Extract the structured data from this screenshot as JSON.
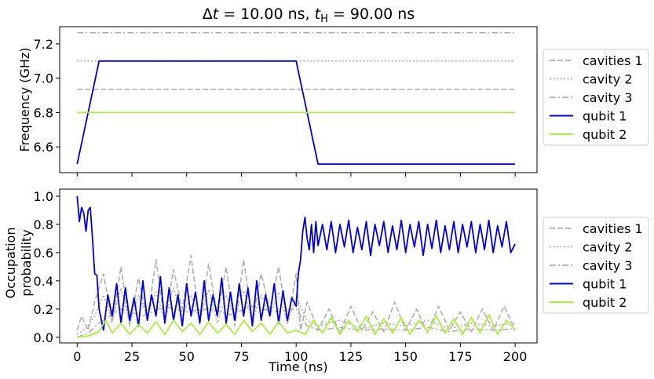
{
  "chart_data": [
    {
      "type": "line",
      "title": "Δt = 10.00 ns, t_H = 90.00 ns",
      "title_parts": {
        "delta": "Δ",
        "t": "t",
        "eq1": " = 10.00 ns, ",
        "tH": "t",
        "sub": "H",
        "eq2": " = 90.00 ns"
      },
      "xlabel": "",
      "ylabel": "Frequency (GHz)",
      "xlim": [
        -8,
        210
      ],
      "ylim": [
        6.45,
        7.3
      ],
      "yticks": [
        6.6,
        6.8,
        7.0,
        7.2
      ],
      "ytick_labels": [
        "6.6",
        "6.8",
        "7.0",
        "7.2"
      ],
      "xticks": [
        0,
        25,
        50,
        75,
        100,
        125,
        150,
        175,
        200
      ],
      "show_x_tick_labels": false,
      "grid": false,
      "legend_position": "right",
      "series": [
        {
          "name": "cavities 1",
          "style": "dashed",
          "color": "#b0b0b0",
          "x": [
            0,
            200
          ],
          "y": [
            6.935,
            6.935
          ]
        },
        {
          "name": "cavity 2",
          "style": "dotted",
          "color": "#b0b0b0",
          "x": [
            0,
            200
          ],
          "y": [
            7.1,
            7.1
          ]
        },
        {
          "name": "cavity 3",
          "style": "dashdot",
          "color": "#b0b0b0",
          "x": [
            0,
            200
          ],
          "y": [
            7.265,
            7.265
          ]
        },
        {
          "name": "qubit 1",
          "style": "solid",
          "color": "#0000dd",
          "x": [
            0,
            10,
            100,
            110,
            200
          ],
          "y": [
            6.5,
            7.1,
            7.1,
            6.5,
            6.5
          ]
        },
        {
          "name": "qubit 2",
          "style": "solid",
          "color": "#aaee44",
          "x": [
            0,
            200
          ],
          "y": [
            6.8,
            6.8
          ]
        }
      ]
    },
    {
      "type": "line",
      "title": "",
      "xlabel": "Time (ns)",
      "ylabel_lines": [
        "Occupation",
        "probability"
      ],
      "xlim": [
        -8,
        210
      ],
      "ylim": [
        -0.04,
        1.05
      ],
      "yticks": [
        0.0,
        0.2,
        0.4,
        0.6,
        0.8,
        1.0
      ],
      "ytick_labels": [
        "0.0",
        "0.2",
        "0.4",
        "0.6",
        "0.8",
        "1.0"
      ],
      "xticks": [
        0,
        25,
        50,
        75,
        100,
        125,
        150,
        175,
        200
      ],
      "xtick_labels": [
        "0",
        "25",
        "50",
        "75",
        "100",
        "125",
        "150",
        "175",
        "200"
      ],
      "grid": false,
      "legend_position": "right",
      "series": [
        {
          "name": "cavities 1",
          "style": "dashed",
          "color": "#b0b0b0",
          "x": [
            0,
            2,
            5,
            8,
            12,
            16,
            20,
            24,
            28,
            32,
            36,
            40,
            44,
            48,
            52,
            56,
            60,
            64,
            68,
            72,
            76,
            80,
            84,
            88,
            92,
            96,
            100,
            102,
            105,
            110,
            115,
            120,
            125,
            130,
            135,
            140,
            145,
            150,
            155,
            160,
            165,
            170,
            175,
            180,
            185,
            190,
            195,
            200
          ],
          "y": [
            0.05,
            0.15,
            0.05,
            0.25,
            0.45,
            0.1,
            0.5,
            0.08,
            0.42,
            0.12,
            0.55,
            0.1,
            0.48,
            0.2,
            0.58,
            0.1,
            0.52,
            0.15,
            0.5,
            0.08,
            0.55,
            0.12,
            0.45,
            0.2,
            0.5,
            0.1,
            0.45,
            0.05,
            0.25,
            0.05,
            0.2,
            0.03,
            0.22,
            0.05,
            0.18,
            0.04,
            0.25,
            0.05,
            0.2,
            0.03,
            0.22,
            0.05,
            0.18,
            0.04,
            0.2,
            0.05,
            0.22,
            0.05
          ]
        },
        {
          "name": "cavity 2",
          "style": "dotted",
          "color": "#b0b0b0",
          "x": [
            0,
            4,
            8,
            12,
            16,
            20,
            24,
            28,
            32,
            36,
            40,
            44,
            48,
            52,
            56,
            60,
            64,
            68,
            72,
            76,
            80,
            84,
            88,
            92,
            96,
            100,
            105,
            110,
            120,
            130,
            140,
            150,
            160,
            170,
            180,
            190,
            200
          ],
          "y": [
            0.02,
            0.06,
            0.15,
            0.3,
            0.12,
            0.35,
            0.1,
            0.3,
            0.15,
            0.32,
            0.12,
            0.35,
            0.15,
            0.3,
            0.12,
            0.34,
            0.1,
            0.3,
            0.14,
            0.33,
            0.12,
            0.3,
            0.15,
            0.32,
            0.1,
            0.28,
            0.12,
            0.08,
            0.12,
            0.06,
            0.1,
            0.08,
            0.12,
            0.06,
            0.1,
            0.08,
            0.1
          ]
        },
        {
          "name": "cavity 3",
          "style": "dashdot",
          "color": "#b0b0b0",
          "x": [
            0,
            5,
            10,
            20,
            30,
            40,
            50,
            60,
            70,
            80,
            90,
            100,
            105,
            110,
            120,
            130,
            140,
            150,
            160,
            170,
            180,
            190,
            200
          ],
          "y": [
            0.0,
            0.03,
            0.1,
            0.2,
            0.15,
            0.22,
            0.18,
            0.2,
            0.16,
            0.22,
            0.18,
            0.2,
            0.08,
            0.05,
            0.07,
            0.05,
            0.06,
            0.05,
            0.07,
            0.04,
            0.06,
            0.05,
            0.06
          ]
        },
        {
          "name": "qubit 1",
          "style": "solid",
          "color": "#0000dd",
          "x": [
            0,
            1,
            2,
            3,
            4,
            5,
            6,
            7,
            8,
            9,
            10,
            12,
            14,
            16,
            18,
            20,
            22,
            24,
            26,
            28,
            30,
            32,
            34,
            36,
            38,
            40,
            42,
            44,
            46,
            48,
            50,
            52,
            54,
            56,
            58,
            60,
            62,
            64,
            66,
            68,
            70,
            72,
            74,
            76,
            78,
            80,
            82,
            84,
            86,
            88,
            90,
            92,
            94,
            96,
            98,
            100,
            101,
            102,
            103,
            104,
            105,
            106,
            107,
            108,
            109,
            110,
            112,
            114,
            116,
            118,
            120,
            122,
            124,
            126,
            128,
            130,
            132,
            134,
            136,
            138,
            140,
            142,
            144,
            146,
            148,
            150,
            152,
            154,
            156,
            158,
            160,
            162,
            164,
            166,
            168,
            170,
            172,
            174,
            176,
            178,
            180,
            182,
            184,
            186,
            188,
            190,
            192,
            194,
            196,
            198,
            200
          ],
          "y": [
            1.0,
            0.82,
            0.92,
            0.88,
            0.75,
            0.9,
            0.92,
            0.7,
            0.45,
            0.44,
            0.2,
            0.05,
            0.3,
            0.15,
            0.38,
            0.1,
            0.35,
            0.12,
            0.28,
            0.08,
            0.4,
            0.12,
            0.3,
            0.15,
            0.43,
            0.1,
            0.35,
            0.12,
            0.3,
            0.08,
            0.38,
            0.15,
            0.32,
            0.1,
            0.4,
            0.12,
            0.3,
            0.15,
            0.42,
            0.1,
            0.32,
            0.12,
            0.38,
            0.15,
            0.35,
            0.08,
            0.4,
            0.12,
            0.3,
            0.15,
            0.38,
            0.1,
            0.33,
            0.12,
            0.28,
            0.22,
            0.45,
            0.55,
            0.75,
            0.85,
            0.7,
            0.62,
            0.8,
            0.6,
            0.82,
            0.65,
            0.8,
            0.62,
            0.82,
            0.6,
            0.8,
            0.64,
            0.83,
            0.6,
            0.78,
            0.62,
            0.82,
            0.58,
            0.8,
            0.65,
            0.82,
            0.6,
            0.79,
            0.62,
            0.83,
            0.6,
            0.8,
            0.64,
            0.82,
            0.58,
            0.8,
            0.63,
            0.83,
            0.6,
            0.79,
            0.62,
            0.82,
            0.6,
            0.8,
            0.64,
            0.82,
            0.6,
            0.8,
            0.62,
            0.83,
            0.6,
            0.79,
            0.64,
            0.82,
            0.6,
            0.66
          ]
        },
        {
          "name": "qubit 2",
          "style": "solid",
          "color": "#aaee44",
          "x": [
            0,
            5,
            10,
            13,
            16,
            20,
            24,
            28,
            32,
            36,
            40,
            44,
            48,
            52,
            56,
            60,
            64,
            68,
            72,
            76,
            80,
            84,
            88,
            92,
            96,
            100,
            104,
            108,
            112,
            116,
            120,
            124,
            128,
            132,
            136,
            140,
            144,
            148,
            152,
            156,
            160,
            164,
            168,
            172,
            176,
            180,
            184,
            188,
            192,
            196,
            200
          ],
          "y": [
            0.0,
            0.01,
            0.04,
            0.12,
            0.03,
            0.1,
            0.02,
            0.09,
            0.03,
            0.11,
            0.02,
            0.12,
            0.04,
            0.1,
            0.02,
            0.11,
            0.03,
            0.09,
            0.02,
            0.12,
            0.04,
            0.1,
            0.02,
            0.11,
            0.03,
            0.05,
            0.02,
            0.12,
            0.03,
            0.14,
            0.02,
            0.12,
            0.04,
            0.15,
            0.02,
            0.13,
            0.03,
            0.14,
            0.02,
            0.12,
            0.04,
            0.15,
            0.03,
            0.13,
            0.02,
            0.14,
            0.03,
            0.16,
            0.02,
            0.12,
            0.05
          ]
        }
      ]
    }
  ]
}
